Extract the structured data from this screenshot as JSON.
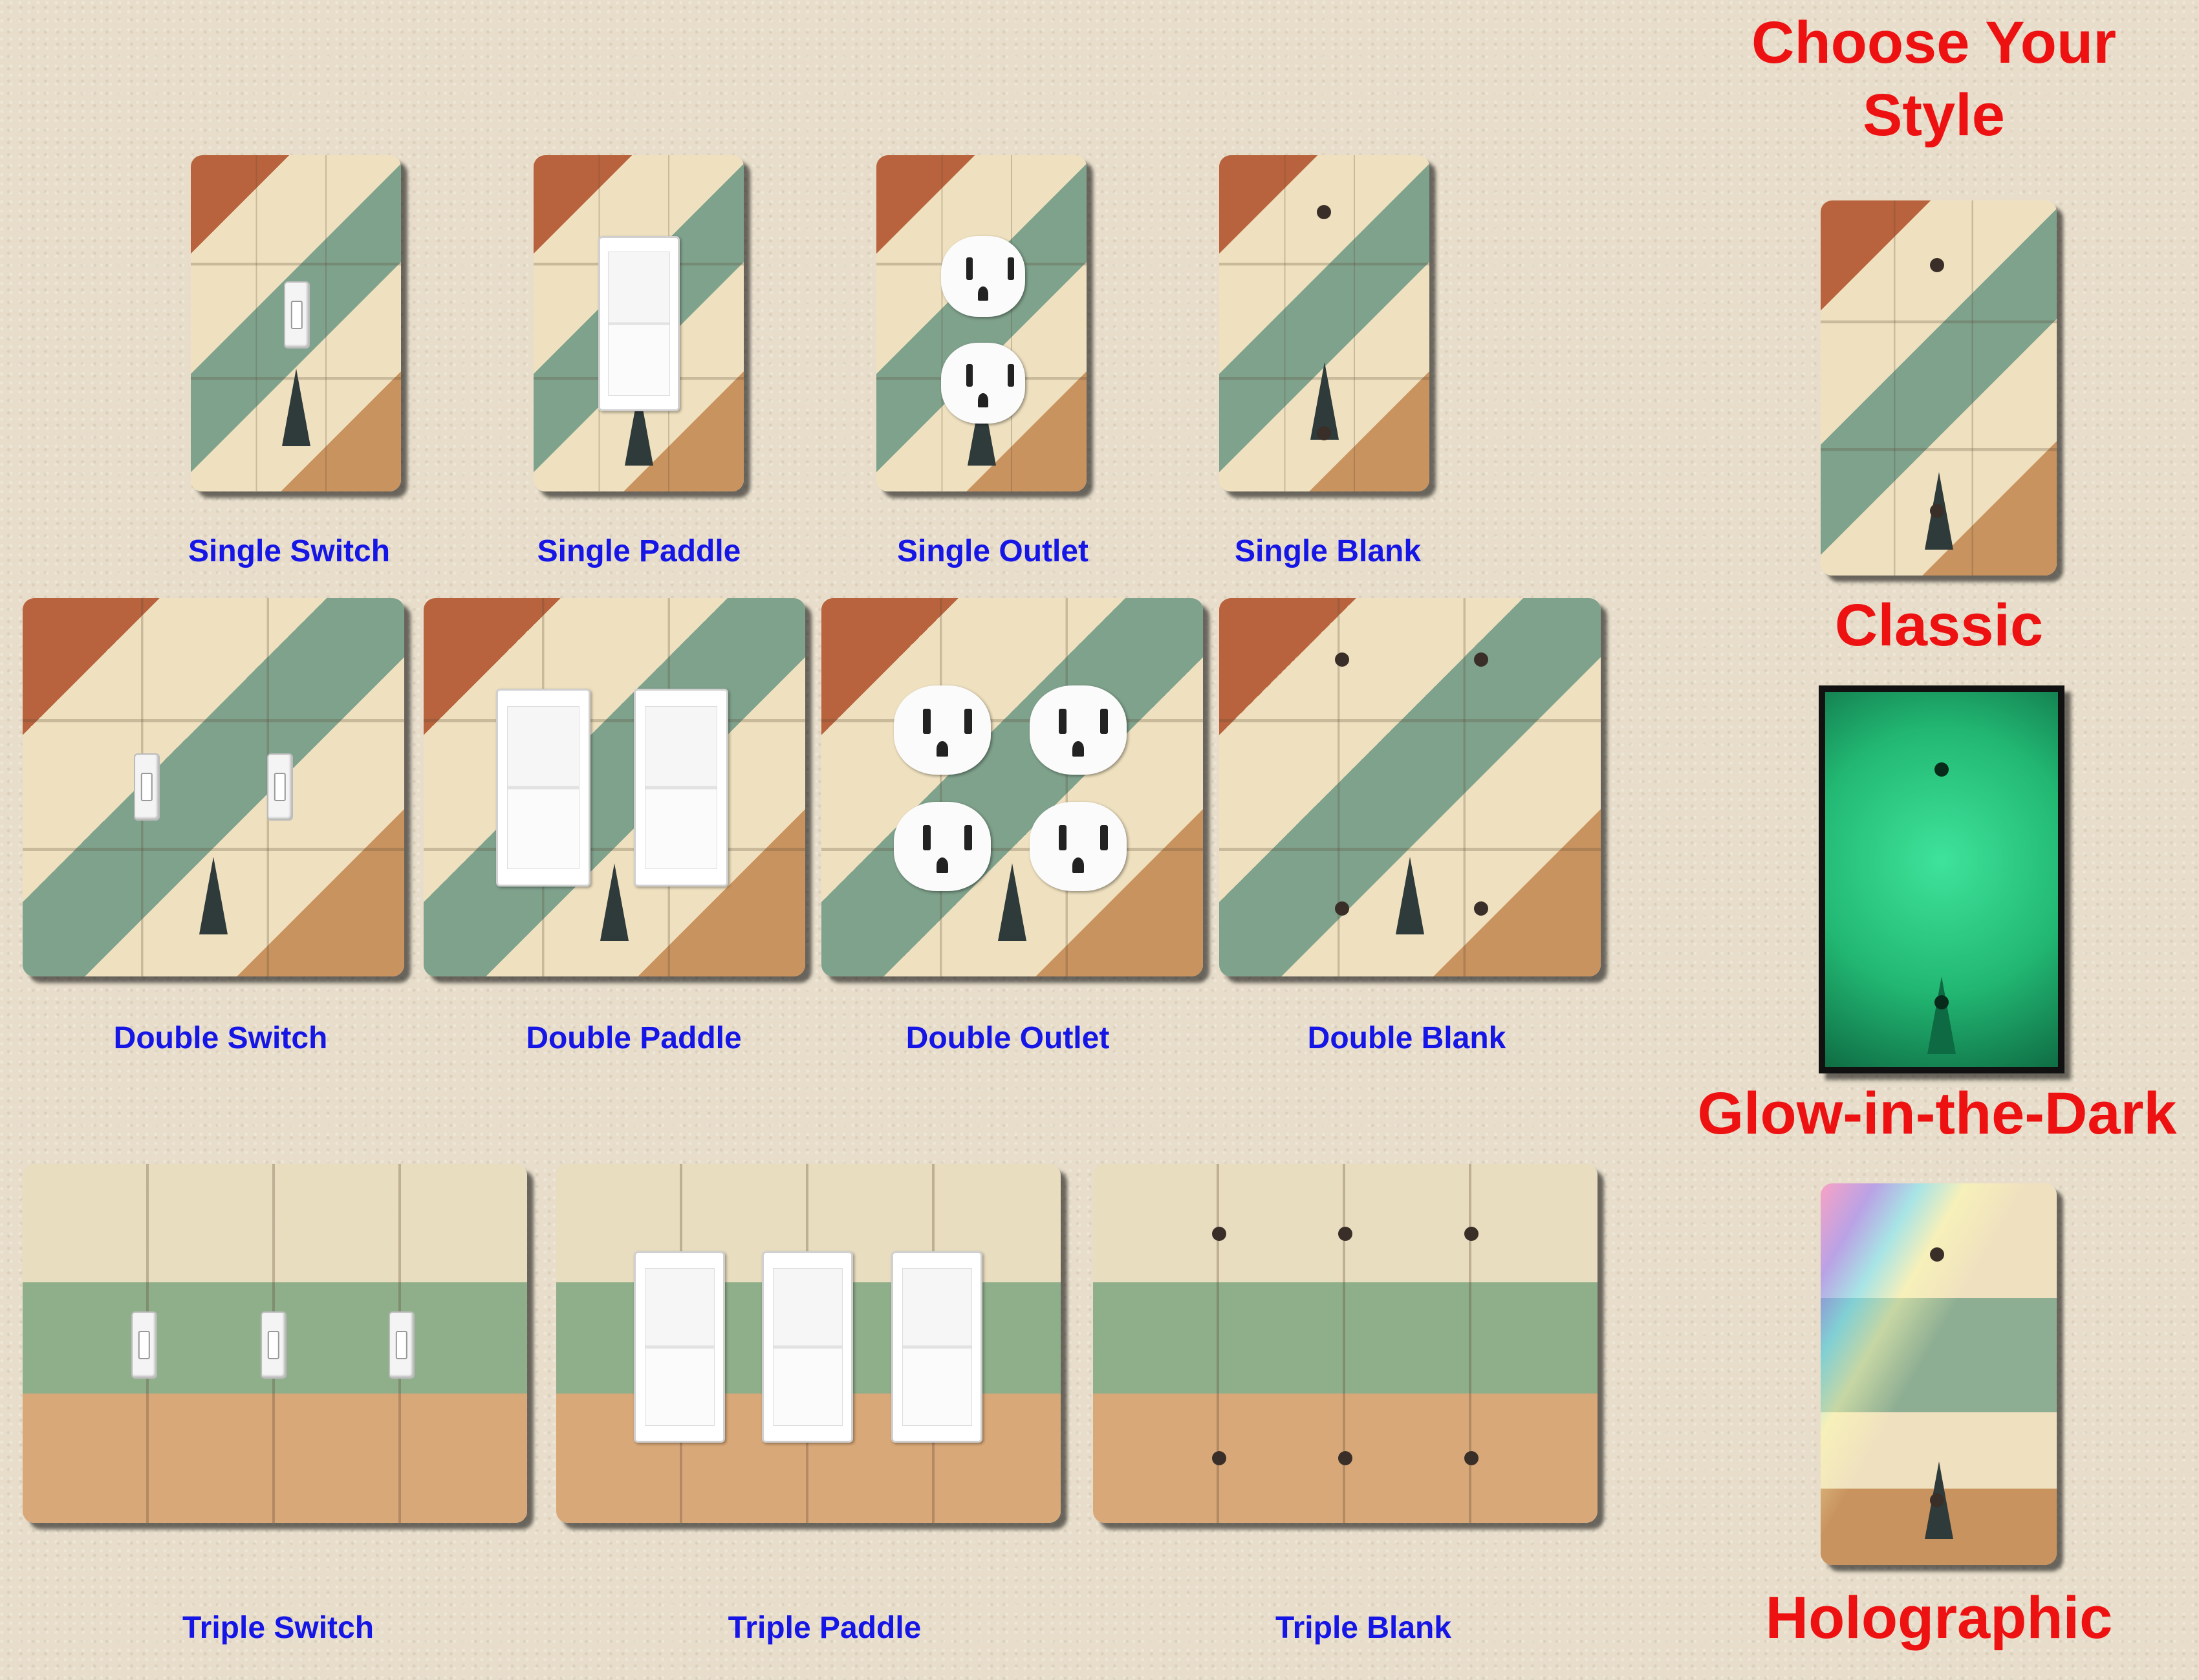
{
  "heading": {
    "line1": "Choose Your",
    "line2": "Style"
  },
  "plates": {
    "single_switch": "Single Switch",
    "single_paddle": "Single Paddle",
    "single_outlet": "Single Outlet",
    "single_blank": "Single Blank",
    "double_switch": "Double Switch",
    "double_paddle": "Double Paddle",
    "double_outlet": "Double Outlet",
    "double_blank": "Double Blank",
    "triple_switch": "Triple Switch",
    "triple_paddle": "Triple Paddle",
    "triple_blank": "Triple Blank"
  },
  "styles": {
    "classic": "Classic",
    "glow": "Glow-in-the-Dark",
    "holographic": "Holographic"
  },
  "colors": {
    "label_blue": "#1515e6",
    "title_red": "#ee1111"
  }
}
